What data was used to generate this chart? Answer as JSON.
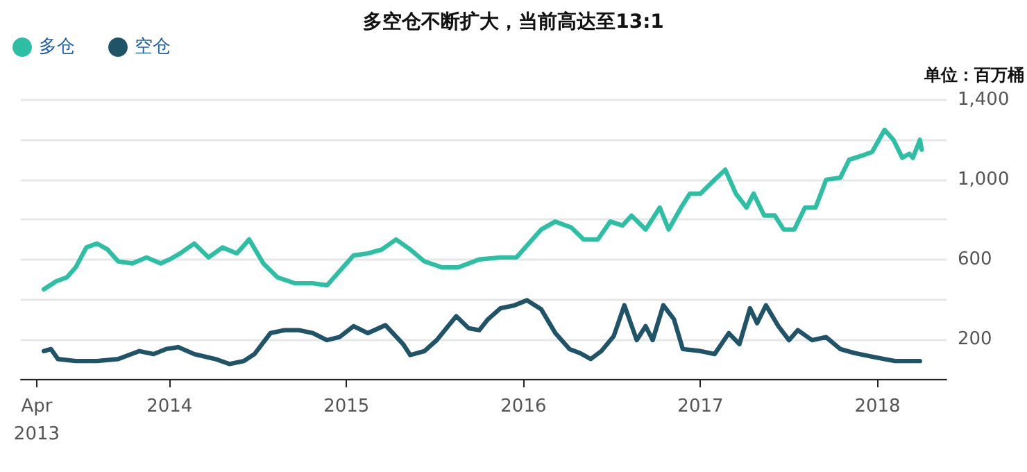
{
  "chart_data": {
    "type": "line",
    "title": "多空仓不断扩大，当前高达至13:1",
    "annotations": [
      "单位：百万桶"
    ],
    "legend": "top left",
    "grid": "y",
    "marker": "none",
    "line_style": "solid",
    "xlim": [
      2013.16,
      2018.39
    ],
    "xticks": [
      {
        "value": 2013.25,
        "label": "Apr\n2013"
      },
      {
        "value": 2014,
        "label": "2014"
      },
      {
        "value": 2015,
        "label": "2015"
      },
      {
        "value": 2016,
        "label": "2016"
      },
      {
        "value": 2017,
        "label": "2017"
      },
      {
        "value": 2018,
        "label": "2018"
      }
    ],
    "ylim": [
      0,
      1400
    ],
    "yticks": [
      {
        "value": 0,
        "label": null
      },
      {
        "value": 200,
        "label": "200"
      },
      {
        "value": 400,
        "label": null
      },
      {
        "value": 600,
        "label": "600"
      },
      {
        "value": 800,
        "label": null
      },
      {
        "value": 1000,
        "label": "1,000"
      },
      {
        "value": 1200,
        "label": null
      },
      {
        "value": 1400,
        "label": "1,400"
      }
    ],
    "series": [
      {
        "name": "多仓",
        "color": "#2dbfa3",
        "x": [
          2013.29,
          2013.36,
          2013.42,
          2013.47,
          2013.53,
          2013.59,
          2013.65,
          2013.71,
          2013.79,
          2013.87,
          2013.95,
          2014.0,
          2014.06,
          2014.14,
          2014.22,
          2014.3,
          2014.38,
          2014.45,
          2014.53,
          2014.61,
          2014.71,
          2014.81,
          2014.89,
          2014.96,
          2015.04,
          2015.12,
          2015.2,
          2015.28,
          2015.36,
          2015.44,
          2015.54,
          2015.63,
          2015.75,
          2015.87,
          2015.96,
          2016.02,
          2016.1,
          2016.18,
          2016.27,
          2016.34,
          2016.42,
          2016.49,
          2016.56,
          2016.61,
          2016.69,
          2016.77,
          2016.82,
          2016.89,
          2016.94,
          2017.0,
          2017.08,
          2017.14,
          2017.2,
          2017.26,
          2017.3,
          2017.36,
          2017.42,
          2017.47,
          2017.53,
          2017.59,
          2017.65,
          2017.71,
          2017.79,
          2017.84,
          2017.91,
          2017.97,
          2018.04,
          2018.09,
          2018.14,
          2018.18,
          2018.2,
          2018.24,
          2018.25
        ],
        "values": [
          450,
          490,
          510,
          560,
          660,
          680,
          650,
          590,
          580,
          610,
          580,
          600,
          630,
          680,
          610,
          660,
          630,
          700,
          580,
          510,
          480,
          480,
          470,
          540,
          620,
          630,
          650,
          700,
          650,
          590,
          560,
          560,
          600,
          610,
          610,
          670,
          750,
          790,
          760,
          700,
          700,
          790,
          770,
          820,
          750,
          860,
          750,
          860,
          930,
          930,
          1000,
          1050,
          930,
          860,
          930,
          820,
          820,
          750,
          750,
          860,
          860,
          1000,
          1010,
          1100,
          1120,
          1140,
          1250,
          1200,
          1110,
          1130,
          1110,
          1200,
          1150
        ]
      },
      {
        "name": "空仓",
        "color": "#1f5468",
        "x": [
          2013.29,
          2013.33,
          2013.37,
          2013.47,
          2013.59,
          2013.71,
          2013.83,
          2013.91,
          2013.98,
          2014.05,
          2014.14,
          2014.26,
          2014.34,
          2014.42,
          2014.48,
          2014.57,
          2014.65,
          2014.73,
          2014.81,
          2014.89,
          2014.96,
          2015.04,
          2015.12,
          2015.22,
          2015.32,
          2015.36,
          2015.44,
          2015.51,
          2015.62,
          2015.69,
          2015.75,
          2015.8,
          2015.87,
          2015.95,
          2016.02,
          2016.1,
          2016.18,
          2016.26,
          2016.32,
          2016.38,
          2016.44,
          2016.51,
          2016.57,
          2016.64,
          2016.69,
          2016.73,
          2016.79,
          2016.85,
          2016.9,
          2017.0,
          2017.08,
          2017.16,
          2017.22,
          2017.28,
          2017.32,
          2017.37,
          2017.44,
          2017.5,
          2017.55,
          2017.63,
          2017.71,
          2017.79,
          2017.87,
          2017.98,
          2018.1,
          2018.24
        ],
        "values": [
          140,
          150,
          100,
          90,
          90,
          100,
          140,
          125,
          150,
          160,
          125,
          100,
          75,
          90,
          125,
          230,
          245,
          245,
          230,
          195,
          210,
          265,
          230,
          270,
          175,
          120,
          140,
          195,
          315,
          255,
          245,
          300,
          355,
          370,
          395,
          350,
          230,
          150,
          130,
          100,
          140,
          215,
          370,
          195,
          265,
          195,
          370,
          300,
          150,
          140,
          125,
          230,
          175,
          355,
          280,
          370,
          265,
          195,
          245,
          195,
          210,
          150,
          130,
          110,
          90,
          90
        ]
      }
    ]
  }
}
